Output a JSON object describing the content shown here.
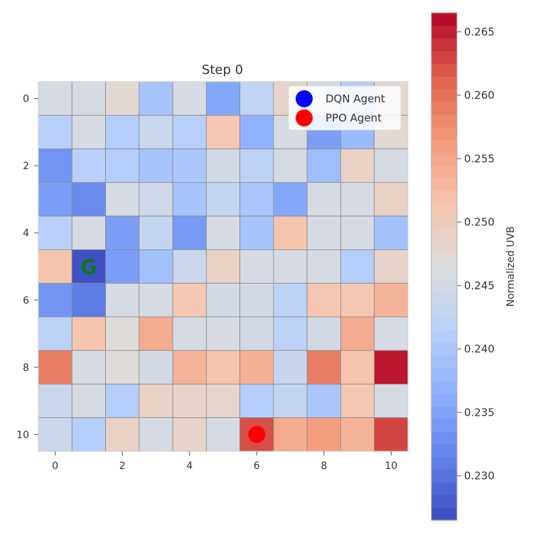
{
  "chart_data": {
    "type": "heatmap",
    "title": "Step 0",
    "xticks": [
      "0",
      "2",
      "4",
      "6",
      "8",
      "10"
    ],
    "yticks": [
      "0",
      "2",
      "4",
      "6",
      "8",
      "10"
    ],
    "grid_size": 11,
    "values": [
      [
        0.2455,
        0.2455,
        0.2475,
        0.2395,
        0.2455,
        0.2355,
        0.2425,
        0.2485,
        0.2455,
        0.241,
        0.2475
      ],
      [
        0.2415,
        0.2455,
        0.241,
        0.244,
        0.2415,
        0.251,
        0.237,
        0.2455,
        0.2345,
        0.238,
        0.2475
      ],
      [
        0.2335,
        0.2415,
        0.241,
        0.2395,
        0.24,
        0.245,
        0.242,
        0.2455,
        0.2385,
        0.249,
        0.2455
      ],
      [
        0.2345,
        0.2325,
        0.2455,
        0.2445,
        0.2395,
        0.243,
        0.24,
        0.2355,
        0.2455,
        0.2455,
        0.249
      ],
      [
        0.2415,
        0.2455,
        0.2345,
        0.243,
        0.234,
        0.2455,
        0.2395,
        0.2515,
        0.2455,
        0.2455,
        0.239
      ],
      [
        0.2515,
        0.227,
        0.2345,
        0.239,
        0.244,
        0.249,
        0.2455,
        0.2455,
        0.2455,
        0.241,
        0.2485
      ],
      [
        0.2335,
        0.231,
        0.2455,
        0.2455,
        0.251,
        0.245,
        0.245,
        0.242,
        0.251,
        0.251,
        0.2535
      ],
      [
        0.242,
        0.2515,
        0.247,
        0.2545,
        0.2455,
        0.2455,
        0.245,
        0.242,
        0.245,
        0.2545,
        0.2455
      ],
      [
        0.259,
        0.2455,
        0.247,
        0.245,
        0.2535,
        0.2515,
        0.254,
        0.2435,
        0.259,
        0.2515,
        0.2655
      ],
      [
        0.244,
        0.2455,
        0.241,
        0.249,
        0.2485,
        0.248,
        0.241,
        0.243,
        0.24,
        0.251,
        0.2455
      ],
      [
        0.244,
        0.241,
        0.249,
        0.2455,
        0.2485,
        0.2455,
        0.2625,
        0.2545,
        0.256,
        0.2535,
        0.263
      ]
    ],
    "agents": [
      {
        "name": "DQN Agent",
        "color": "#0000ff",
        "col": null,
        "row": null
      },
      {
        "name": "PPO Agent",
        "color": "#ff0000",
        "col": 6,
        "row": 10
      }
    ],
    "goal": {
      "label": "G",
      "col": 1,
      "row": 5,
      "color": "#0b7a0b"
    },
    "legend_placement": "top-right",
    "colorbar": {
      "label": "Normalized UVB",
      "min": 0.2265,
      "max": 0.2665,
      "ticks": [
        0.23,
        0.235,
        0.24,
        0.245,
        0.25,
        0.255,
        0.26,
        0.265
      ],
      "tick_labels": [
        "0.230",
        "0.235",
        "0.240",
        "0.245",
        "0.250",
        "0.255",
        "0.260",
        "0.265"
      ],
      "colormap": "coolwarm",
      "levels": 40
    }
  }
}
